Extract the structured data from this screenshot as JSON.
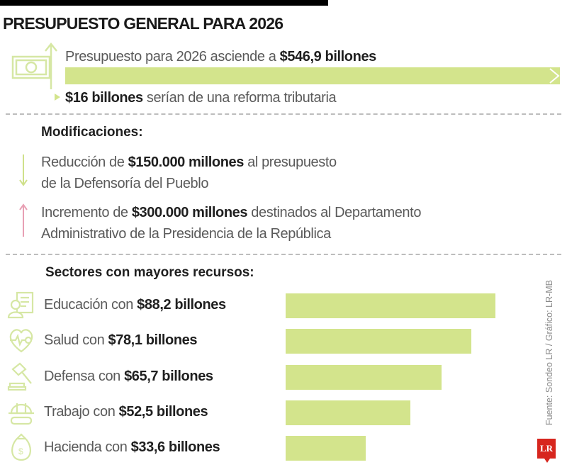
{
  "title": "PRESUPUESTO GENERAL PARA 2026",
  "total": {
    "prefix": "Presupuesto para 2026 asciende a ",
    "amount": "$546,9 billones"
  },
  "reform": {
    "amount": "$16 billones",
    "suffix": " serían de una reforma tributaria"
  },
  "modifications": {
    "heading": "Modificaciones:",
    "items": [
      {
        "direction": "down",
        "prefix": "Reducción de ",
        "amount": "$150.000 millones",
        "suffix": " al presupuesto",
        "line2": "de la Defensoría del Pueblo"
      },
      {
        "direction": "up",
        "prefix": "Incremento de ",
        "amount": "$300.000 millones",
        "suffix": " destinados al Departamento",
        "line2": "Administrativo de la Presidencia de la República"
      }
    ]
  },
  "sectors_heading": "Sectores con mayores recursos:",
  "colors": {
    "bar": "#d3e48c",
    "icon": "#d6e7a4",
    "up_arrow": "#e8a0b4",
    "logo": "#d7261e"
  },
  "chart_data": {
    "type": "bar",
    "orientation": "horizontal",
    "unit": "billones",
    "categories": [
      "Educación",
      "Salud",
      "Defensa",
      "Trabajo",
      "Hacienda"
    ],
    "values": [
      88.2,
      78.1,
      65.7,
      52.5,
      33.6
    ],
    "labels": [
      {
        "prefix": "Educación con ",
        "amount": "$88,2 billones",
        "icon": "certificate-person-icon"
      },
      {
        "prefix": "Salud con ",
        "amount": "$78,1 billones",
        "icon": "heart-pulse-icon"
      },
      {
        "prefix": "Defensa con ",
        "amount": "$65,7 billones",
        "icon": "gavel-icon"
      },
      {
        "prefix": "Trabajo con ",
        "amount": "$52,5 billones",
        "icon": "hardhat-goggles-icon"
      },
      {
        "prefix": "Hacienda con ",
        "amount": "$33,6 billones",
        "icon": "money-bag-icon"
      }
    ]
  },
  "source": "Fuente: Sondeo LR / Gráfico: LR-MB",
  "logo_text": "LR"
}
